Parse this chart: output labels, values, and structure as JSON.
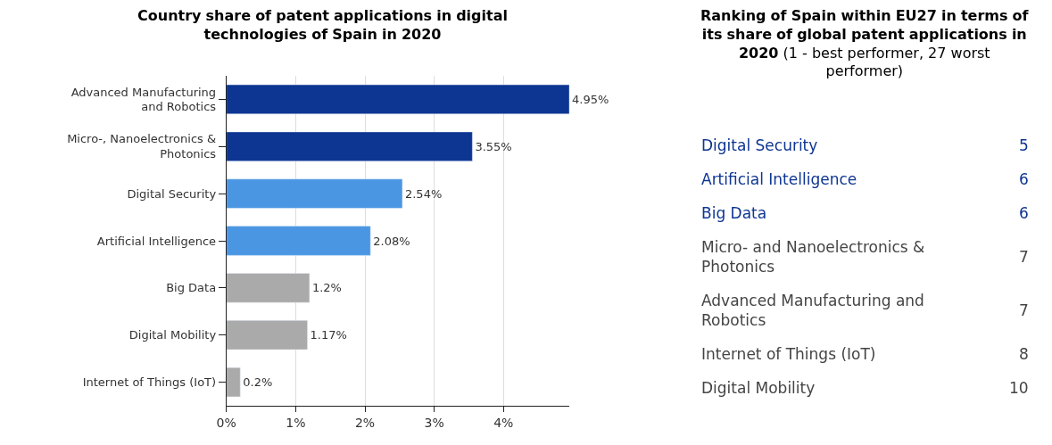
{
  "chart_data": [
    {
      "type": "bar",
      "orientation": "horizontal",
      "title": "Country share of patent applications in digital technologies of Spain in 2020",
      "categories": [
        "Advanced Manufacturing and Robotics",
        "Micro-, Nanoelectronics & Photonics",
        "Digital Security",
        "Artificial Intelligence",
        "Big Data",
        "Digital Mobility",
        "Internet of Things (IoT)"
      ],
      "values": [
        4.95,
        3.55,
        2.54,
        2.08,
        1.2,
        1.17,
        0.2
      ],
      "value_labels": [
        "4.95%",
        "3.55%",
        "2.54%",
        "2.08%",
        "1.2%",
        "1.17%",
        "0.2%"
      ],
      "colors": [
        "#0d3592",
        "#0d3592",
        "#4a96e3",
        "#4a96e3",
        "#aaaaaa",
        "#aaaaaa",
        "#aaaaaa"
      ],
      "xlim": [
        0,
        4.95
      ],
      "xticks": [
        {
          "value": 0,
          "label": "0%"
        },
        {
          "value": 1,
          "label": "1%"
        },
        {
          "value": 2,
          "label": "2%"
        },
        {
          "value": 3,
          "label": "3%"
        },
        {
          "value": 4,
          "label": "4%"
        }
      ],
      "grid": "x"
    },
    {
      "type": "other",
      "title": "Ranking of Spain within EU27 in terms of its share of global patent applications in 2020",
      "subtitle": "(1 - best performer, 27 worst performer)",
      "categories": [
        "Digital Security",
        "Artificial Intelligence",
        "Big Data",
        "Micro- and Nanoelectronics & Photonics",
        "Advanced Manufacturing and Robotics",
        "Internet of Things (IoT)",
        "Digital Mobility"
      ],
      "values": [
        5,
        6,
        6,
        7,
        7,
        8,
        10
      ],
      "colors": [
        "#0d3592",
        "#0d3592",
        "#0d3592",
        "#444444",
        "#444444",
        "#444444",
        "#444444"
      ],
      "data_labels": true
    }
  ]
}
